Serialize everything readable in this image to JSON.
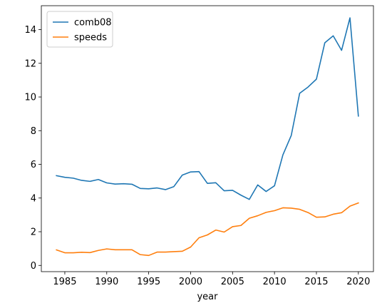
{
  "chart_data": {
    "type": "line",
    "title": "",
    "xlabel": "year",
    "ylabel": "",
    "xlim": [
      1982.2,
      2021.8
    ],
    "ylim": [
      -0.37,
      15.42
    ],
    "grid": false,
    "legend_position": "upper-left",
    "x_ticks": [
      1985,
      1990,
      1995,
      2000,
      2005,
      2010,
      2015,
      2020
    ],
    "y_ticks": [
      0,
      2,
      4,
      6,
      8,
      10,
      12,
      14
    ],
    "x": [
      1984,
      1985,
      1986,
      1987,
      1988,
      1989,
      1990,
      1991,
      1992,
      1993,
      1994,
      1995,
      1996,
      1997,
      1998,
      1999,
      2000,
      2001,
      2002,
      2003,
      2004,
      2005,
      2006,
      2007,
      2008,
      2009,
      2010,
      2011,
      2012,
      2013,
      2014,
      2015,
      2016,
      2017,
      2018,
      2019,
      2020
    ],
    "series": [
      {
        "name": "comb08",
        "color": "#1f77b4",
        "values": [
          5.33,
          5.23,
          5.18,
          5.05,
          4.99,
          5.1,
          4.9,
          4.83,
          4.85,
          4.82,
          4.57,
          4.55,
          4.6,
          4.5,
          4.68,
          5.36,
          5.55,
          5.57,
          4.87,
          4.91,
          4.43,
          4.46,
          4.17,
          3.92,
          4.78,
          4.39,
          4.73,
          6.56,
          7.72,
          10.22,
          10.59,
          11.06,
          13.22,
          13.63,
          12.77,
          14.7,
          8.87
        ]
      },
      {
        "name": "speeds",
        "color": "#ff7f0e",
        "values": [
          0.92,
          0.75,
          0.75,
          0.78,
          0.76,
          0.89,
          0.98,
          0.93,
          0.93,
          0.93,
          0.64,
          0.59,
          0.79,
          0.79,
          0.82,
          0.84,
          1.09,
          1.64,
          1.81,
          2.1,
          1.98,
          2.3,
          2.37,
          2.8,
          2.95,
          3.15,
          3.25,
          3.42,
          3.4,
          3.33,
          3.14,
          2.86,
          2.88,
          3.04,
          3.13,
          3.52,
          3.71
        ]
      }
    ]
  }
}
